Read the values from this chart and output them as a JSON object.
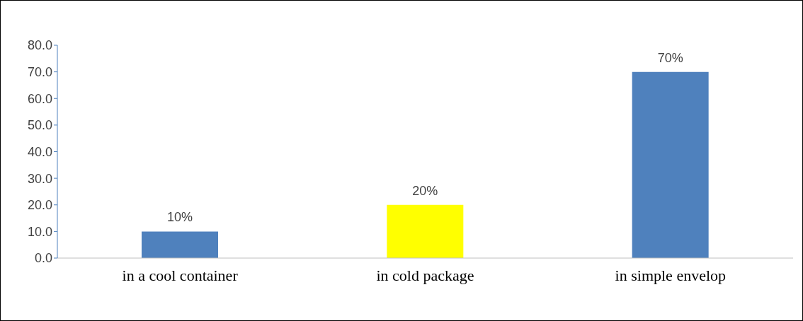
{
  "chart_data": {
    "type": "bar",
    "categories": [
      "in a cool container",
      "in cold package",
      "in simple envelop"
    ],
    "values": [
      10,
      20,
      70
    ],
    "colors": [
      "#4f81bd",
      "#ffff00",
      "#4f81bd"
    ],
    "value_labels": [
      "10%",
      "20%",
      "70%"
    ],
    "ylim": [
      0,
      80
    ],
    "yticks": [
      {
        "value": 0,
        "label": "0.0"
      },
      {
        "value": 10,
        "label": "10.0"
      },
      {
        "value": 20,
        "label": "20.0"
      },
      {
        "value": 30,
        "label": "30.0"
      },
      {
        "value": 40,
        "label": "40.0"
      },
      {
        "value": 50,
        "label": "50.0"
      },
      {
        "value": 60,
        "label": "60.0"
      },
      {
        "value": 70,
        "label": "70.0"
      },
      {
        "value": 80,
        "label": "80.0"
      }
    ],
    "grid": false,
    "legend": false
  }
}
